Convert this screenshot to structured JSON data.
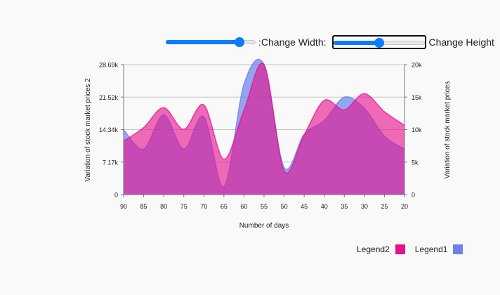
{
  "controls": {
    "width_label": ":Change Width:",
    "height_label": "Change Height",
    "width_value": 0.82,
    "height_value": 0.5
  },
  "colors": {
    "legend1": "#6b82ec",
    "legend2": "#e6118e",
    "overlap": "#c54fb6"
  },
  "chart_data": {
    "type": "area",
    "xlabel": "Number of days",
    "ylabel_left": "Variation of stock market prices 2",
    "ylabel_right": "Variation of stock market prices",
    "x": [
      90,
      85,
      80,
      75,
      70,
      65,
      60,
      55,
      50,
      45,
      40,
      35,
      30,
      25,
      20
    ],
    "x_ticks": [
      "90",
      "85",
      "80",
      "75",
      "70",
      "65",
      "60",
      "55",
      "50",
      "45",
      "40",
      "35",
      "30",
      "25",
      "20"
    ],
    "y_left_ticks": [
      "0",
      "7.17k",
      "14.34k",
      "21.52k",
      "28.69k"
    ],
    "y_left_range": [
      0,
      28690
    ],
    "y_right_ticks": [
      "0",
      "5k",
      "10k",
      "15k",
      "20k"
    ],
    "y_right_range": [
      0,
      20000
    ],
    "grid": true,
    "legend_position": "bottom-right",
    "series": [
      {
        "name": "Legend2",
        "axis": "left",
        "values": [
          11800,
          14800,
          19200,
          14400,
          19800,
          7800,
          18600,
          28700,
          5200,
          13200,
          20800,
          18700,
          22300,
          18300,
          15300
        ]
      },
      {
        "name": "Legend1",
        "axis": "right",
        "values": [
          10000,
          7000,
          12300,
          7000,
          12000,
          1200,
          17000,
          20000,
          4200,
          9300,
          11400,
          15000,
          13300,
          9000,
          7000
        ]
      }
    ],
    "legend": [
      "Legend2",
      "Legend1"
    ]
  }
}
